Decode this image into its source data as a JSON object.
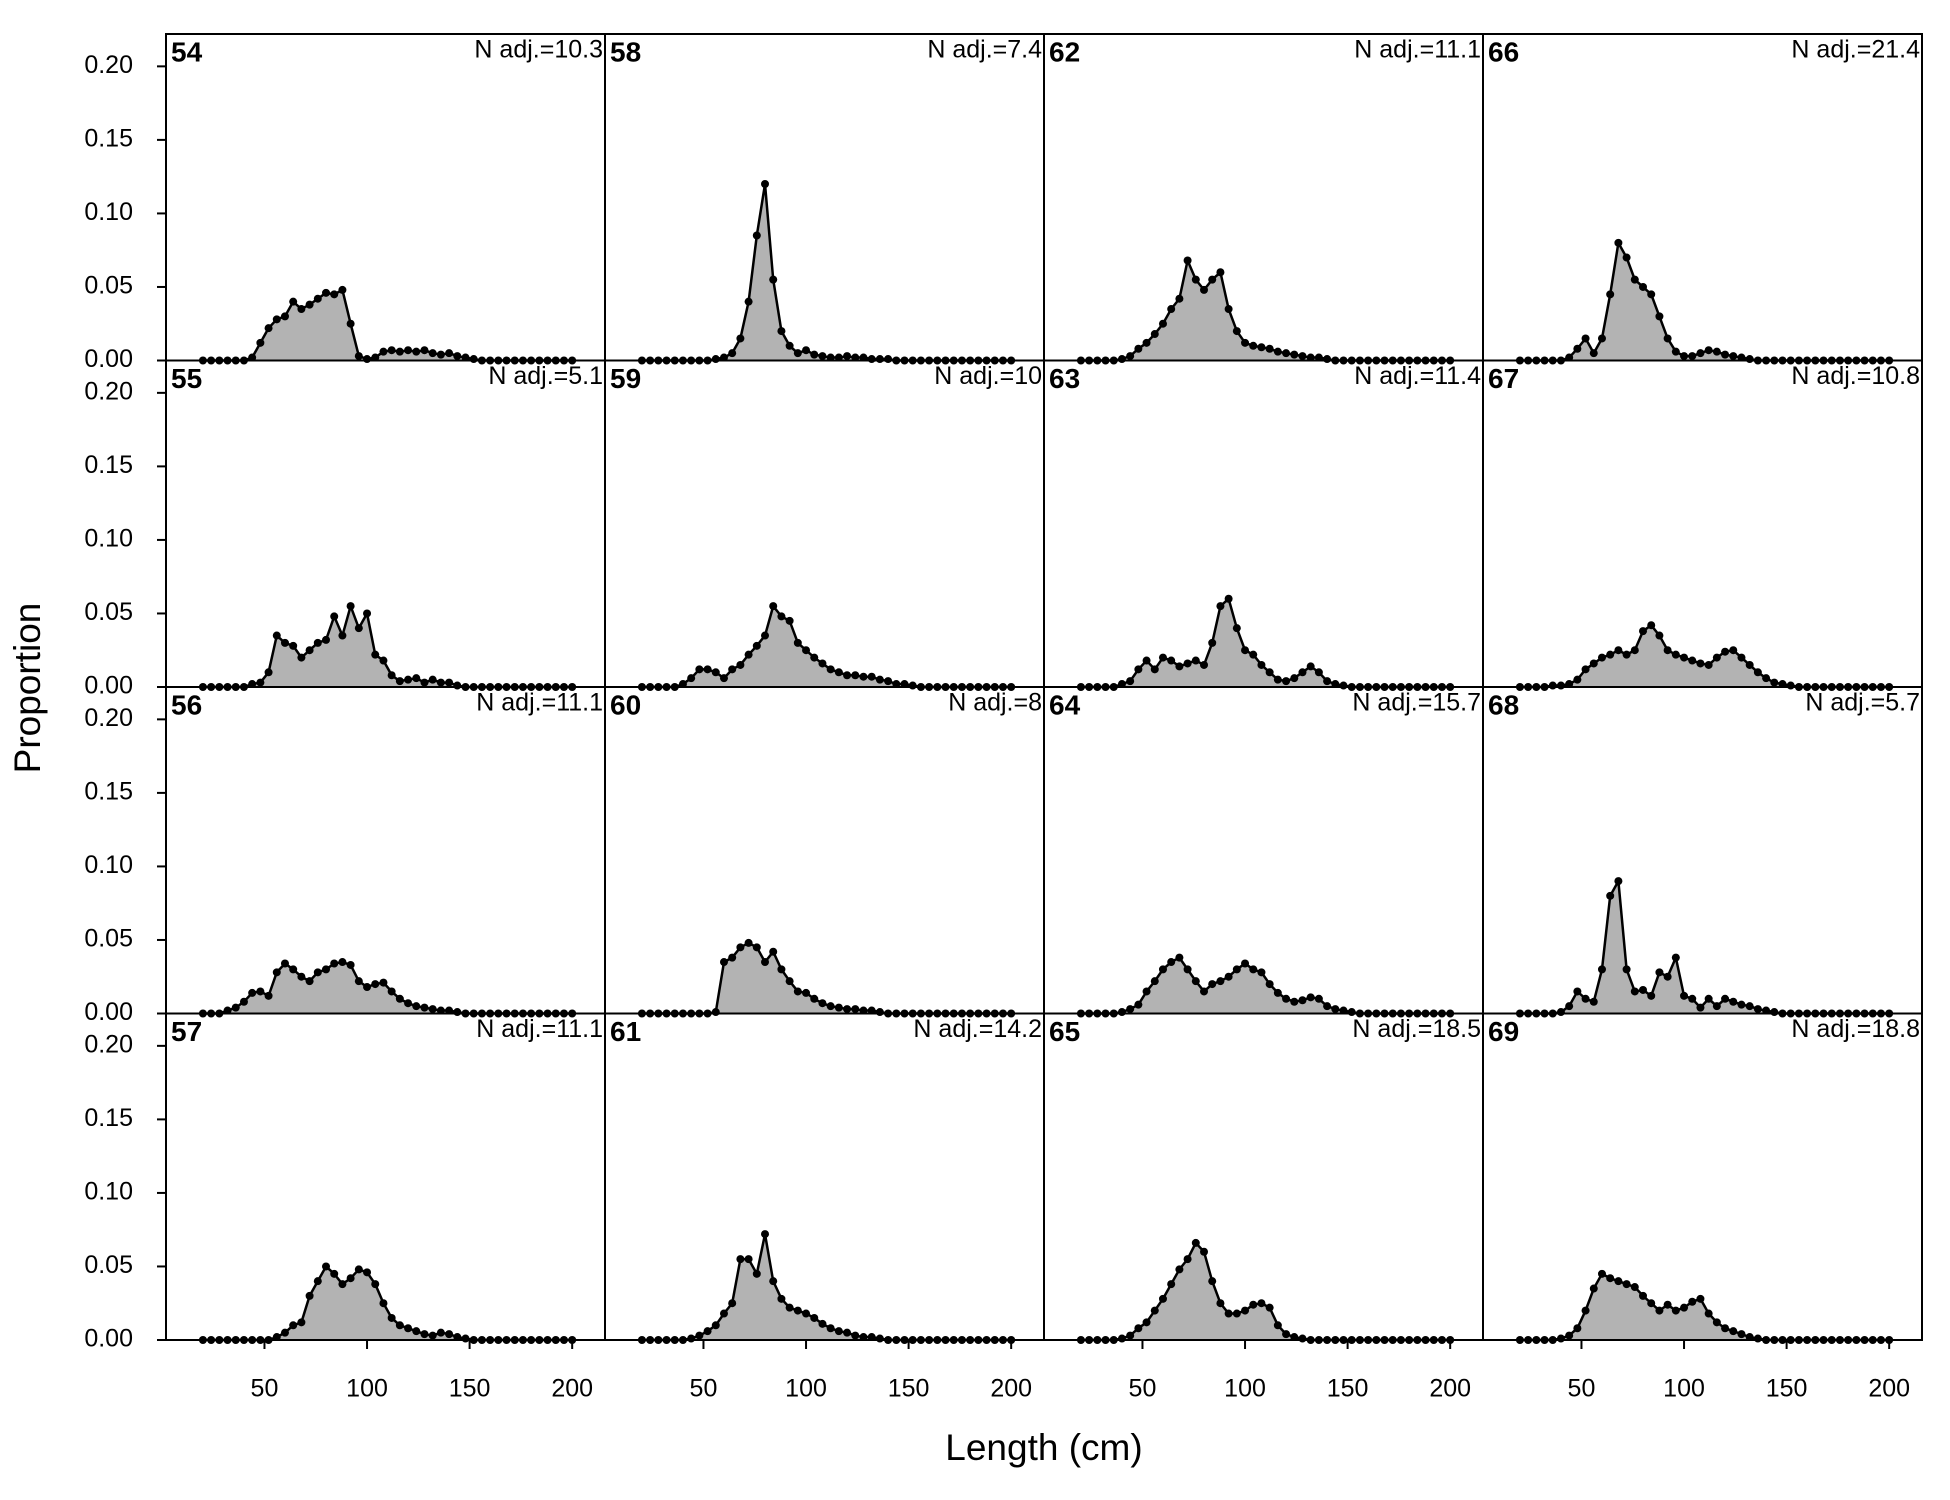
{
  "chart_data": {
    "type": "panel-area",
    "x_label": "Length (cm)",
    "y_label": "Proportion",
    "x": [
      20,
      24,
      28,
      32,
      36,
      40,
      44,
      48,
      52,
      56,
      60,
      64,
      68,
      72,
      76,
      80,
      84,
      88,
      92,
      96,
      100,
      104,
      108,
      112,
      116,
      120,
      124,
      128,
      132,
      136,
      140,
      144,
      148,
      152,
      156,
      160,
      164,
      168,
      172,
      176,
      180,
      184,
      188,
      192,
      196,
      200
    ],
    "xlim": [
      2,
      216
    ],
    "xticks": [
      50,
      100,
      150,
      200
    ],
    "ylim": [
      0,
      0.222
    ],
    "yticks": [
      {
        "value": 0,
        "label": "0.00"
      },
      0.05,
      {
        "value": 0.1,
        "label": "0.10"
      },
      0.15,
      {
        "value": 0.2,
        "label": "0.20"
      }
    ],
    "fill_color": "#b3b3b3",
    "line_color": "#000000",
    "panels": [
      {
        "title": "54",
        "annotation": "N adj.=10.3",
        "values": [
          0,
          0,
          0,
          0,
          0,
          0,
          0.002,
          0.012,
          0.022,
          0.028,
          0.03,
          0.04,
          0.035,
          0.038,
          0.042,
          0.046,
          0.045,
          0.048,
          0.025,
          0.003,
          0.001,
          0.002,
          0.006,
          0.007,
          0.006,
          0.007,
          0.006,
          0.007,
          0.005,
          0.004,
          0.005,
          0.003,
          0.002,
          0.001,
          0,
          0,
          0,
          0,
          0,
          0,
          0,
          0,
          0,
          0,
          0,
          0
        ]
      },
      {
        "title": "55",
        "annotation": "N adj.=5.1",
        "values": [
          0,
          0,
          0,
          0,
          0,
          0,
          0.002,
          0.003,
          0.01,
          0.035,
          0.03,
          0.028,
          0.02,
          0.025,
          0.03,
          0.032,
          0.048,
          0.035,
          0.055,
          0.04,
          0.05,
          0.022,
          0.018,
          0.008,
          0.004,
          0.005,
          0.006,
          0.003,
          0.005,
          0.003,
          0.003,
          0.001,
          0,
          0,
          0,
          0,
          0,
          0,
          0,
          0,
          0,
          0,
          0,
          0,
          0,
          0
        ]
      },
      {
        "title": "56",
        "annotation": "N adj.=11.1",
        "values": [
          0,
          0,
          0,
          0.002,
          0.004,
          0.008,
          0.014,
          0.015,
          0.012,
          0.028,
          0.034,
          0.03,
          0.025,
          0.022,
          0.028,
          0.03,
          0.034,
          0.035,
          0.033,
          0.022,
          0.018,
          0.02,
          0.021,
          0.015,
          0.01,
          0.007,
          0.005,
          0.004,
          0.003,
          0.002,
          0.002,
          0.001,
          0,
          0,
          0,
          0,
          0,
          0,
          0,
          0,
          0,
          0,
          0,
          0,
          0,
          0
        ]
      },
      {
        "title": "57",
        "annotation": "N adj.=11.1",
        "values": [
          0,
          0,
          0,
          0,
          0,
          0,
          0,
          0,
          0,
          0.002,
          0.005,
          0.01,
          0.012,
          0.03,
          0.04,
          0.05,
          0.045,
          0.038,
          0.042,
          0.048,
          0.046,
          0.038,
          0.025,
          0.015,
          0.01,
          0.008,
          0.006,
          0.004,
          0.003,
          0.005,
          0.004,
          0.002,
          0.001,
          0,
          0,
          0,
          0,
          0,
          0,
          0,
          0,
          0,
          0,
          0,
          0,
          0
        ]
      },
      {
        "title": "58",
        "annotation": "N adj.=7.4",
        "values": [
          0,
          0,
          0,
          0,
          0,
          0,
          0,
          0,
          0,
          0.001,
          0.002,
          0.005,
          0.015,
          0.04,
          0.085,
          0.12,
          0.055,
          0.02,
          0.01,
          0.005,
          0.007,
          0.004,
          0.003,
          0.002,
          0.002,
          0.003,
          0.002,
          0.002,
          0.001,
          0.001,
          0.001,
          0,
          0,
          0,
          0,
          0,
          0,
          0,
          0,
          0,
          0,
          0,
          0,
          0,
          0,
          0
        ]
      },
      {
        "title": "59",
        "annotation": "N adj.=10",
        "values": [
          0,
          0,
          0,
          0,
          0,
          0.002,
          0.006,
          0.012,
          0.012,
          0.01,
          0.006,
          0.012,
          0.015,
          0.022,
          0.028,
          0.035,
          0.055,
          0.048,
          0.045,
          0.03,
          0.025,
          0.02,
          0.016,
          0.012,
          0.01,
          0.008,
          0.008,
          0.007,
          0.007,
          0.005,
          0.004,
          0.002,
          0.002,
          0.001,
          0,
          0,
          0,
          0,
          0,
          0,
          0,
          0,
          0,
          0,
          0,
          0
        ]
      },
      {
        "title": "60",
        "annotation": "N adj.=8",
        "values": [
          0,
          0,
          0,
          0,
          0,
          0,
          0,
          0,
          0,
          0.001,
          0.035,
          0.038,
          0.045,
          0.048,
          0.045,
          0.035,
          0.042,
          0.03,
          0.022,
          0.015,
          0.014,
          0.01,
          0.007,
          0.005,
          0.004,
          0.003,
          0.003,
          0.002,
          0.002,
          0.001,
          0,
          0,
          0,
          0,
          0,
          0,
          0,
          0,
          0,
          0,
          0,
          0,
          0,
          0,
          0,
          0
        ]
      },
      {
        "title": "61",
        "annotation": "N adj.=14.2",
        "values": [
          0,
          0,
          0,
          0,
          0,
          0,
          0.001,
          0.003,
          0.006,
          0.01,
          0.018,
          0.025,
          0.055,
          0.055,
          0.045,
          0.072,
          0.04,
          0.028,
          0.022,
          0.02,
          0.018,
          0.015,
          0.011,
          0.008,
          0.006,
          0.005,
          0.003,
          0.002,
          0.002,
          0.001,
          0,
          0,
          0,
          0,
          0,
          0,
          0,
          0,
          0,
          0,
          0,
          0,
          0,
          0,
          0,
          0
        ]
      },
      {
        "title": "62",
        "annotation": "N adj.=11.1",
        "values": [
          0,
          0,
          0,
          0,
          0,
          0.001,
          0.003,
          0.008,
          0.012,
          0.018,
          0.025,
          0.035,
          0.042,
          0.068,
          0.055,
          0.048,
          0.055,
          0.06,
          0.035,
          0.02,
          0.012,
          0.01,
          0.009,
          0.008,
          0.006,
          0.005,
          0.004,
          0.003,
          0.002,
          0.002,
          0.001,
          0,
          0,
          0,
          0,
          0,
          0,
          0,
          0,
          0,
          0,
          0,
          0,
          0,
          0,
          0
        ]
      },
      {
        "title": "63",
        "annotation": "N adj.=11.4",
        "values": [
          0,
          0,
          0,
          0,
          0,
          0.002,
          0.004,
          0.012,
          0.018,
          0.012,
          0.02,
          0.018,
          0.014,
          0.016,
          0.018,
          0.015,
          0.03,
          0.055,
          0.06,
          0.04,
          0.025,
          0.022,
          0.015,
          0.01,
          0.005,
          0.004,
          0.006,
          0.01,
          0.014,
          0.01,
          0.004,
          0.002,
          0.001,
          0,
          0,
          0,
          0,
          0,
          0,
          0,
          0,
          0,
          0,
          0,
          0,
          0
        ]
      },
      {
        "title": "64",
        "annotation": "N adj.=15.7",
        "values": [
          0,
          0,
          0,
          0,
          0,
          0.001,
          0.003,
          0.006,
          0.015,
          0.022,
          0.03,
          0.035,
          0.038,
          0.03,
          0.022,
          0.015,
          0.02,
          0.022,
          0.025,
          0.03,
          0.034,
          0.03,
          0.028,
          0.02,
          0.014,
          0.01,
          0.008,
          0.009,
          0.011,
          0.01,
          0.005,
          0.003,
          0.002,
          0.001,
          0,
          0,
          0,
          0,
          0,
          0,
          0,
          0,
          0,
          0,
          0,
          0
        ]
      },
      {
        "title": "65",
        "annotation": "N adj.=18.5",
        "values": [
          0,
          0,
          0,
          0,
          0,
          0.001,
          0.003,
          0.008,
          0.012,
          0.02,
          0.028,
          0.038,
          0.048,
          0.055,
          0.066,
          0.06,
          0.04,
          0.025,
          0.018,
          0.018,
          0.02,
          0.024,
          0.025,
          0.022,
          0.01,
          0.004,
          0.002,
          0.001,
          0,
          0,
          0,
          0,
          0,
          0,
          0,
          0,
          0,
          0,
          0,
          0,
          0,
          0,
          0,
          0,
          0,
          0
        ]
      },
      {
        "title": "66",
        "annotation": "N adj.=21.4",
        "values": [
          0,
          0,
          0,
          0,
          0,
          0,
          0.002,
          0.008,
          0.015,
          0.005,
          0.015,
          0.045,
          0.08,
          0.07,
          0.055,
          0.05,
          0.045,
          0.03,
          0.015,
          0.006,
          0.003,
          0.003,
          0.005,
          0.007,
          0.006,
          0.004,
          0.003,
          0.002,
          0.001,
          0,
          0,
          0,
          0,
          0,
          0,
          0,
          0,
          0,
          0,
          0,
          0,
          0,
          0,
          0,
          0,
          0
        ]
      },
      {
        "title": "67",
        "annotation": "N adj.=10.8",
        "values": [
          0,
          0,
          0,
          0,
          0.001,
          0.001,
          0.002,
          0.005,
          0.012,
          0.016,
          0.02,
          0.022,
          0.025,
          0.022,
          0.025,
          0.038,
          0.042,
          0.035,
          0.025,
          0.022,
          0.02,
          0.018,
          0.016,
          0.015,
          0.02,
          0.024,
          0.025,
          0.02,
          0.015,
          0.01,
          0.006,
          0.003,
          0.002,
          0.001,
          0,
          0,
          0,
          0,
          0,
          0,
          0,
          0,
          0,
          0,
          0,
          0
        ]
      },
      {
        "title": "68",
        "annotation": "N adj.=5.7",
        "values": [
          0,
          0,
          0,
          0,
          0,
          0.001,
          0.005,
          0.015,
          0.01,
          0.008,
          0.03,
          0.08,
          0.09,
          0.03,
          0.015,
          0.016,
          0.012,
          0.028,
          0.025,
          0.038,
          0.012,
          0.01,
          0.004,
          0.01,
          0.005,
          0.01,
          0.008,
          0.006,
          0.005,
          0.003,
          0.002,
          0.001,
          0,
          0,
          0,
          0,
          0,
          0,
          0,
          0,
          0,
          0,
          0,
          0,
          0,
          0
        ]
      },
      {
        "title": "69",
        "annotation": "N adj.=18.8",
        "values": [
          0,
          0,
          0,
          0,
          0,
          0.001,
          0.003,
          0.008,
          0.02,
          0.035,
          0.045,
          0.042,
          0.04,
          0.038,
          0.036,
          0.03,
          0.025,
          0.02,
          0.024,
          0.02,
          0.022,
          0.026,
          0.028,
          0.018,
          0.012,
          0.008,
          0.006,
          0.004,
          0.002,
          0.001,
          0,
          0,
          0,
          0,
          0,
          0,
          0,
          0,
          0,
          0,
          0,
          0,
          0,
          0,
          0,
          0
        ]
      }
    ]
  }
}
